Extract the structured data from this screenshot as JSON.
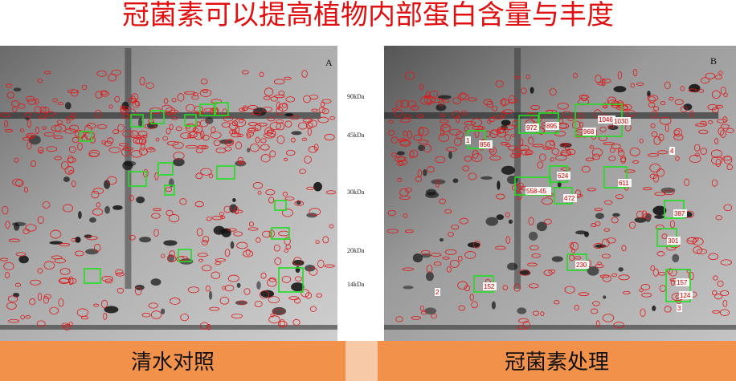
{
  "title": "冠菌素可以提高植物内部蛋白含量与丰度",
  "panels": [
    {
      "label": "A",
      "caption": "清水对照",
      "markers": [
        "90kDa",
        "45kDa",
        "30kDa",
        "20kDa",
        "14kDa"
      ]
    },
    {
      "label": "B",
      "caption": "冠菌素处理",
      "spots": [
        "1",
        "856",
        "972",
        "895",
        "968",
        "1046",
        "1030",
        "4",
        "624",
        "611",
        "558-45",
        "472",
        "387",
        "301",
        "230",
        "152",
        "157",
        "124",
        "3",
        "2"
      ]
    }
  ]
}
